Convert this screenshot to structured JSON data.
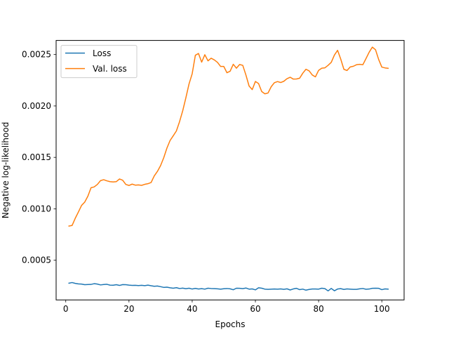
{
  "chart_data": {
    "type": "line",
    "title": "",
    "xlabel": "Epochs",
    "ylabel": "Negative log-likelihood",
    "xlim": [
      -3.05,
      107.05
    ],
    "ylim": [
      0.000114,
      0.002637
    ],
    "xticks": [
      0,
      20,
      40,
      60,
      80,
      100
    ],
    "xtick_labels": [
      "0",
      "20",
      "40",
      "60",
      "80",
      "100"
    ],
    "yticks": [
      0.0005,
      0.001,
      0.0015,
      0.002,
      0.0025
    ],
    "ytick_labels": [
      "0.0005",
      "0.0010",
      "0.0015",
      "0.0020",
      "0.0025"
    ],
    "grid": false,
    "legend_position": "top-left",
    "x": [
      1,
      2,
      3,
      4,
      5,
      6,
      7,
      8,
      9,
      10,
      11,
      12,
      13,
      14,
      15,
      16,
      17,
      18,
      19,
      20,
      21,
      22,
      23,
      24,
      25,
      26,
      27,
      28,
      29,
      30,
      31,
      32,
      33,
      34,
      35,
      36,
      37,
      38,
      39,
      40,
      41,
      42,
      43,
      44,
      45,
      46,
      47,
      48,
      49,
      50,
      51,
      52,
      53,
      54,
      55,
      56,
      57,
      58,
      59,
      60,
      61,
      62,
      63,
      64,
      65,
      66,
      67,
      68,
      69,
      70,
      71,
      72,
      73,
      74,
      75,
      76,
      77,
      78,
      79,
      80,
      81,
      82,
      83,
      84,
      85,
      86,
      87,
      88,
      89,
      90,
      91,
      92,
      93,
      94,
      95,
      96,
      97,
      98,
      99,
      100,
      101,
      102
    ],
    "series": [
      {
        "name": "Loss",
        "color": "#1f77b4",
        "values": [
          0.000277,
          0.000283,
          0.000275,
          0.00027,
          0.000268,
          0.000262,
          0.000264,
          0.000265,
          0.000272,
          0.000268,
          0.00026,
          0.000264,
          0.000266,
          0.000258,
          0.000257,
          0.000262,
          0.000255,
          0.000263,
          0.000262,
          0.000258,
          0.000255,
          0.000256,
          0.000254,
          0.000256,
          0.000253,
          0.000258,
          0.000252,
          0.000247,
          0.000249,
          0.000243,
          0.000236,
          0.000238,
          0.000232,
          0.000228,
          0.000233,
          0.000225,
          0.000229,
          0.000223,
          0.000228,
          0.00022,
          0.000226,
          0.00022,
          0.000224,
          0.000219,
          0.000228,
          0.000225,
          0.000224,
          0.000222,
          0.000219,
          0.000223,
          0.000225,
          0.000222,
          0.000213,
          0.000228,
          0.000227,
          0.000224,
          0.00023,
          0.000219,
          0.000221,
          0.000212,
          0.000232,
          0.000228,
          0.000219,
          0.000217,
          0.000219,
          0.00022,
          0.000219,
          0.000221,
          0.000217,
          0.000222,
          0.000211,
          0.000221,
          0.000227,
          0.000214,
          0.000219,
          0.000209,
          0.000216,
          0.00022,
          0.00022,
          0.000219,
          0.000228,
          0.000224,
          0.000202,
          0.000226,
          0.000203,
          0.00022,
          0.000224,
          0.000216,
          0.000221,
          0.000219,
          0.000217,
          0.000217,
          0.000222,
          0.000225,
          0.000218,
          0.00022,
          0.000227,
          0.000228,
          0.000227,
          0.000214,
          0.000221,
          0.000219
        ]
      },
      {
        "name": "Val. loss",
        "color": "#ff7f0e",
        "values": [
          0.000832,
          0.000838,
          0.000908,
          0.000969,
          0.001033,
          0.001065,
          0.001123,
          0.001205,
          0.001213,
          0.001237,
          0.001274,
          0.001283,
          0.001272,
          0.001264,
          0.001261,
          0.001264,
          0.00129,
          0.001278,
          0.001237,
          0.001227,
          0.00124,
          0.00123,
          0.001232,
          0.001228,
          0.001238,
          0.001244,
          0.001256,
          0.00132,
          0.001364,
          0.00142,
          0.001497,
          0.00159,
          0.001664,
          0.00171,
          0.001757,
          0.001847,
          0.001953,
          0.002079,
          0.002214,
          0.002313,
          0.002493,
          0.00251,
          0.002426,
          0.002498,
          0.002439,
          0.002464,
          0.002448,
          0.002424,
          0.002384,
          0.002384,
          0.002323,
          0.002338,
          0.002405,
          0.002367,
          0.002403,
          0.002395,
          0.002301,
          0.002194,
          0.002159,
          0.002238,
          0.002218,
          0.00214,
          0.002118,
          0.002126,
          0.002187,
          0.002226,
          0.002237,
          0.002228,
          0.00224,
          0.002265,
          0.002279,
          0.002261,
          0.002262,
          0.00227,
          0.002319,
          0.002357,
          0.002341,
          0.002301,
          0.002283,
          0.002346,
          0.002367,
          0.002371,
          0.002395,
          0.002424,
          0.002495,
          0.002541,
          0.002456,
          0.002356,
          0.002345,
          0.002379,
          0.002386,
          0.002401,
          0.002405,
          0.002401,
          0.002461,
          0.002523,
          0.002572,
          0.002547,
          0.002452,
          0.002378,
          0.00237,
          0.002366
        ]
      }
    ]
  }
}
